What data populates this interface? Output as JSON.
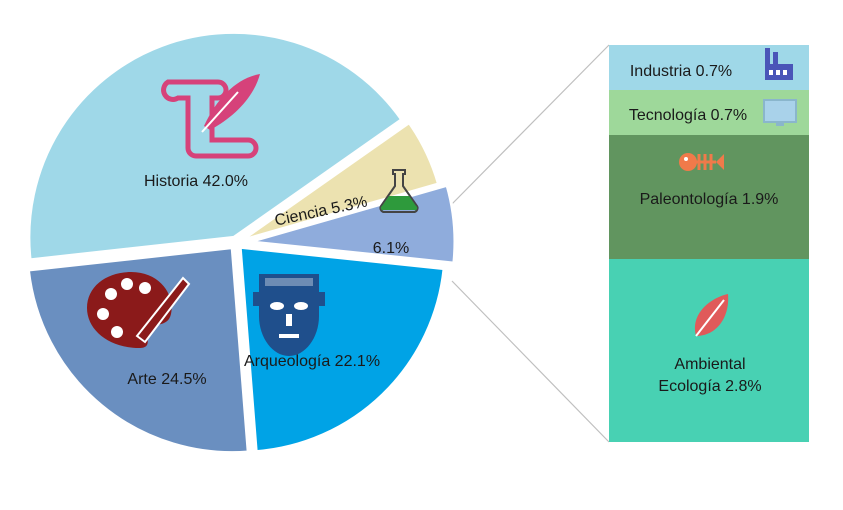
{
  "chart_data": {
    "type": "pie",
    "title": "",
    "slices": [
      {
        "label": "Historia",
        "value": 42.0,
        "display": "Historia 42.0%",
        "color": "#9fd8e8",
        "icon": "scroll-quill-icon",
        "icon_color": "#d6427a"
      },
      {
        "label": "Ciencia",
        "value": 5.3,
        "display": "Ciencia 5.3%",
        "color": "#ece2b0",
        "icon": "flask-icon",
        "icon_color": "#2e9a3c"
      },
      {
        "label": "",
        "value": 6.1,
        "display": "6.1%",
        "color": "#8facdc",
        "icon": "",
        "icon_color": ""
      },
      {
        "label": "Arqueología",
        "value": 22.1,
        "display": "Arqueología 22.1%",
        "color": "#00a3e6",
        "icon": "mask-icon",
        "icon_color": "#1f4f8c"
      },
      {
        "label": "Arte",
        "value": 24.5,
        "display": "Arte 24.5%",
        "color": "#6a8fc0",
        "icon": "palette-icon",
        "icon_color": "#8b1a1a"
      }
    ],
    "breakdown_of": "6.1%",
    "breakdown": [
      {
        "label": "Industria",
        "value": 0.7,
        "display": "Industria 0.7%",
        "color": "#9fd8e8",
        "icon": "factory-icon",
        "icon_color": "#4a55b8"
      },
      {
        "label": "Tecnología",
        "value": 0.7,
        "display": "Tecnología 0.7%",
        "color": "#9ed89a",
        "icon": "monitor-icon",
        "icon_color": "#a9d2ea"
      },
      {
        "label": "Paleontología",
        "value": 1.9,
        "display": "Paleontología 1.9%",
        "color": "#61955f",
        "icon": "fish-skeleton-icon",
        "icon_color": "#f07a4a"
      },
      {
        "label": "Ambiental Ecología",
        "value": 2.8,
        "display": "Ambiental\nEcología 2.8%",
        "lines": [
          "Ambiental",
          "Ecología 2.8%"
        ],
        "color": "#48d1b3",
        "icon": "leaf-icon",
        "icon_color": "#e05a5a"
      }
    ],
    "legend": "none"
  }
}
